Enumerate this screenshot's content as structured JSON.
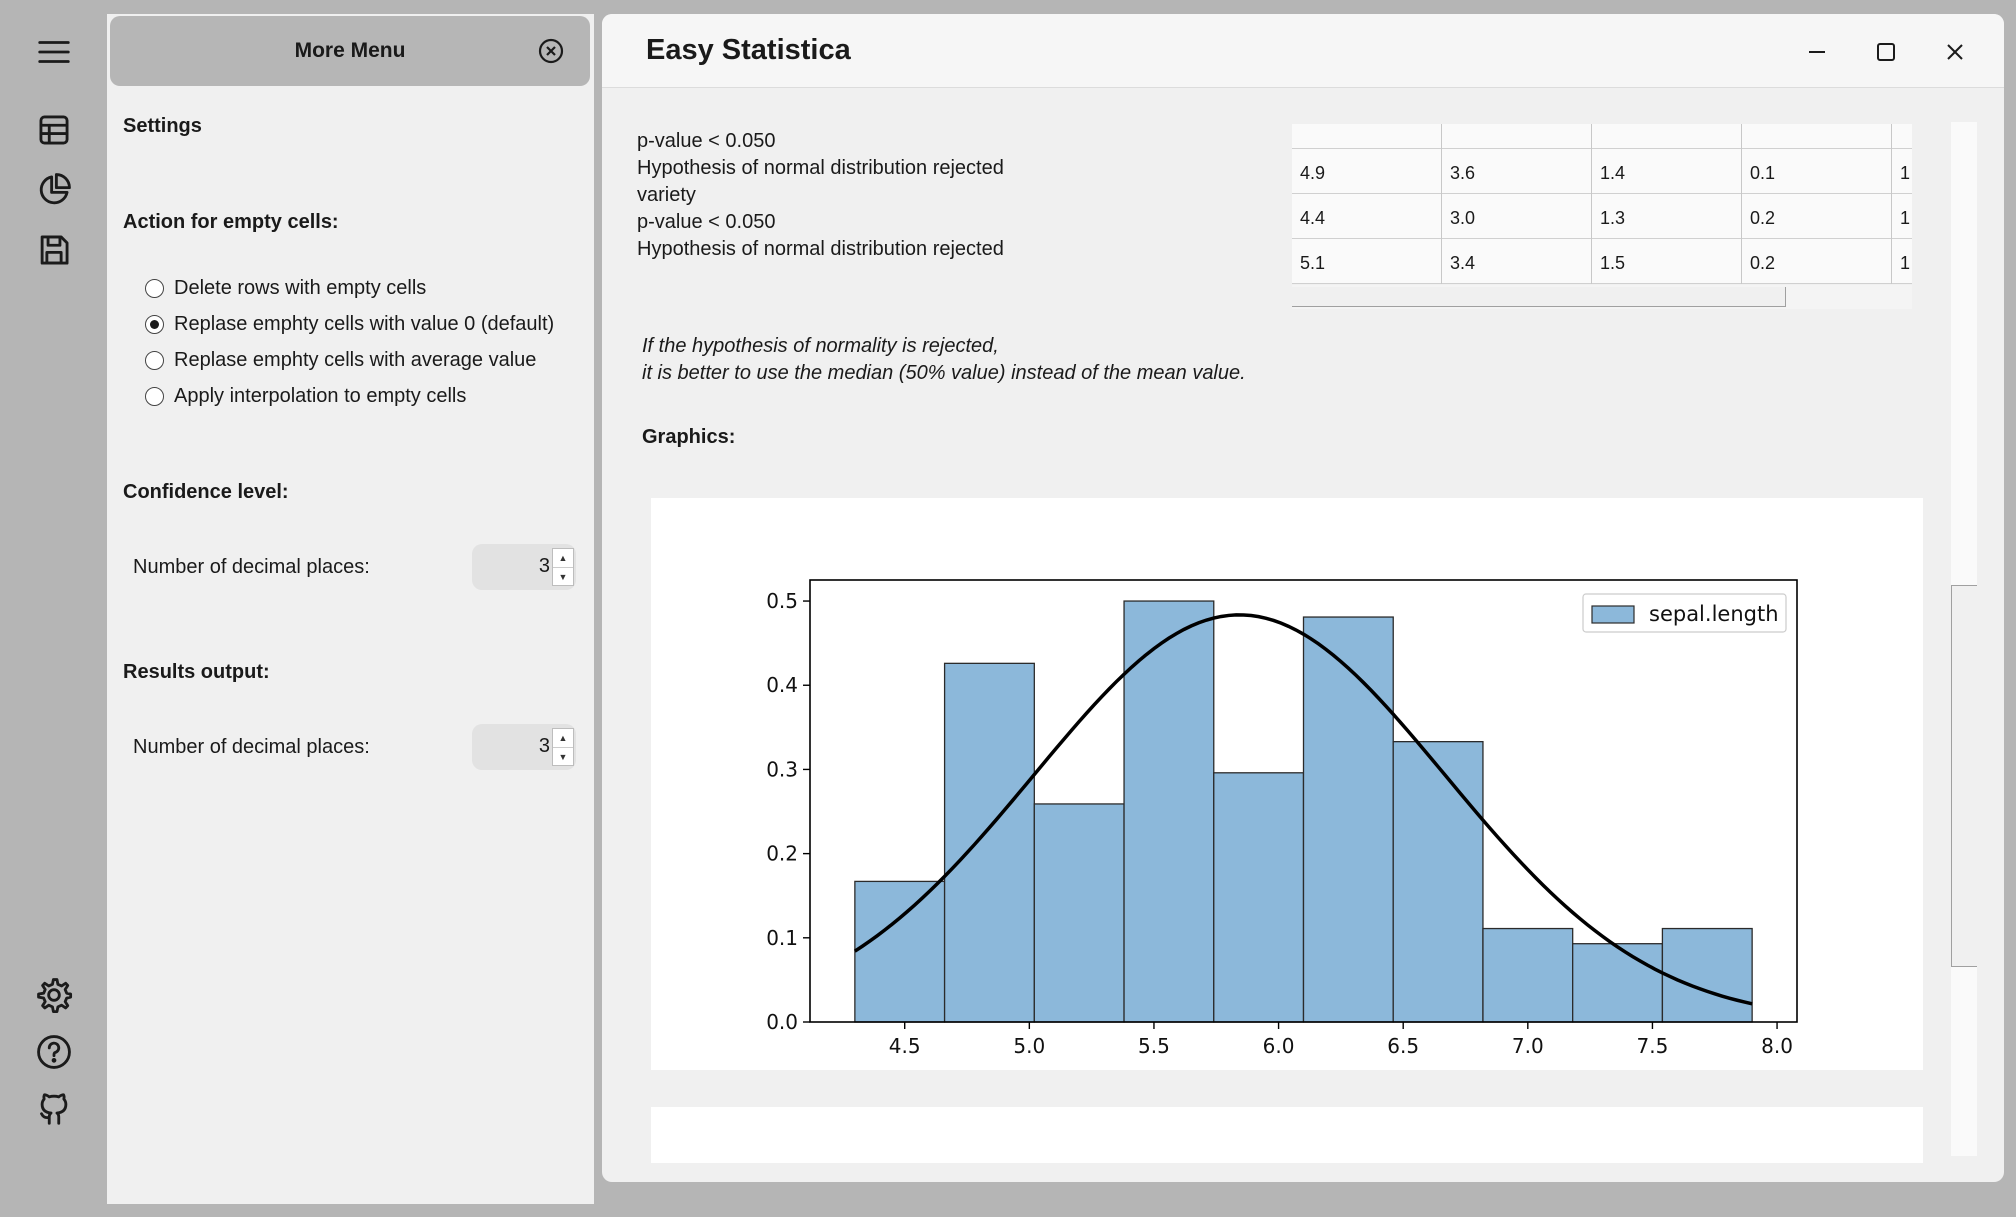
{
  "rail": {
    "items": [
      {
        "name": "menu",
        "icon": "hamburger-icon"
      },
      {
        "name": "table",
        "icon": "table-icon"
      },
      {
        "name": "chart",
        "icon": "pie-chart-icon"
      },
      {
        "name": "save",
        "icon": "save-icon"
      },
      {
        "name": "settings",
        "icon": "gear-icon"
      },
      {
        "name": "help",
        "icon": "help-icon"
      },
      {
        "name": "github",
        "icon": "github-icon"
      }
    ]
  },
  "panel": {
    "title": "More Menu",
    "settings_heading": "Settings",
    "empty_cells_heading": "Action for empty cells:",
    "empty_cells_options": [
      {
        "label": "Delete rows with empty cells",
        "checked": false
      },
      {
        "label": "Replase emphty cells with value 0 (default)",
        "checked": true
      },
      {
        "label": "Replase emphty cells with average value",
        "checked": false
      },
      {
        "label": "Apply interpolation to empty cells",
        "checked": false
      }
    ],
    "confidence_heading": "Confidence level:",
    "confidence_decimal_label": "Number of decimal places:",
    "confidence_decimal_value": "3",
    "results_heading": "Results output:",
    "results_decimal_label": "Number of decimal places:",
    "results_decimal_value": "3"
  },
  "window": {
    "title": "Easy Statistica"
  },
  "results": {
    "lines": [
      "p-value < 0.050",
      "Hypothesis of normal distribution rejected",
      "variety",
      "p-value < 0.050",
      "Hypothesis of normal distribution rejected"
    ],
    "note_line1": "If the hypothesis of normality is rejected,",
    "note_line2": "it is better to use the median (50% value) instead of the mean value.",
    "graphics_heading": "Graphics:"
  },
  "table": {
    "rows": [
      [
        "4.9",
        "3.6",
        "1.4",
        "0.1",
        "1"
      ],
      [
        "4.4",
        "3.0",
        "1.3",
        "0.2",
        "1"
      ],
      [
        "5.1",
        "3.4",
        "1.5",
        "0.2",
        "1"
      ]
    ]
  },
  "chart_data": {
    "type": "bar",
    "title": "",
    "xlabel": "",
    "ylabel": "",
    "x_ticks": [
      "4.5",
      "5.0",
      "5.5",
      "6.0",
      "6.5",
      "7.0",
      "7.5",
      "8.0"
    ],
    "y_ticks": [
      "0.0",
      "0.1",
      "0.2",
      "0.3",
      "0.4",
      "0.5"
    ],
    "xlim": [
      4.12,
      8.08
    ],
    "ylim": [
      0,
      0.525
    ],
    "legend": {
      "label": "sepal.length",
      "placement": "top-right"
    },
    "bar_color": "#8cb8da",
    "bins": [
      {
        "x0": 4.3,
        "x1": 4.66,
        "value": 0.167
      },
      {
        "x0": 4.66,
        "x1": 5.02,
        "value": 0.426
      },
      {
        "x0": 5.02,
        "x1": 5.38,
        "value": 0.259
      },
      {
        "x0": 5.38,
        "x1": 5.74,
        "value": 0.5
      },
      {
        "x0": 5.74,
        "x1": 6.1,
        "value": 0.296
      },
      {
        "x0": 6.1,
        "x1": 6.46,
        "value": 0.481
      },
      {
        "x0": 6.46,
        "x1": 6.82,
        "value": 0.333
      },
      {
        "x0": 6.82,
        "x1": 7.18,
        "value": 0.111
      },
      {
        "x0": 7.18,
        "x1": 7.54,
        "value": 0.093
      },
      {
        "x0": 7.54,
        "x1": 7.9,
        "value": 0.111
      }
    ],
    "normal_curve": {
      "mean": 5.843,
      "std": 0.825,
      "x_from": 4.3,
      "x_to": 7.9
    }
  }
}
